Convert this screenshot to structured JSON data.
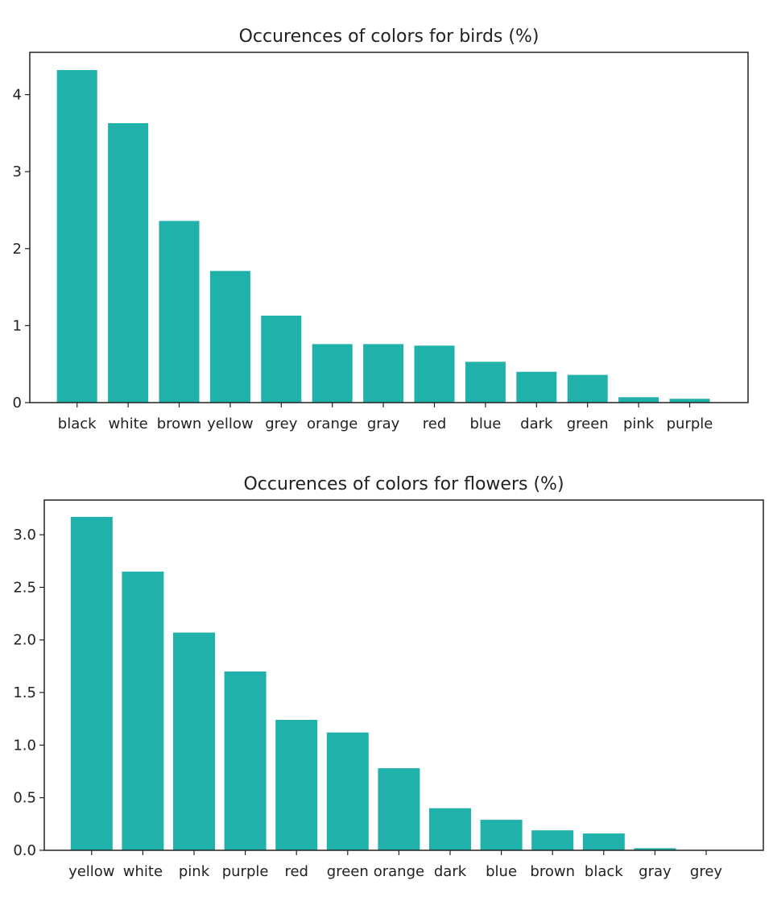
{
  "chart_data": [
    {
      "type": "bar",
      "title": "Occurences of colors for birds (%)",
      "xlabel": "",
      "ylabel": "",
      "categories": [
        "black",
        "white",
        "brown",
        "yellow",
        "grey",
        "orange",
        "gray",
        "red",
        "blue",
        "dark",
        "green",
        "pink",
        "purple"
      ],
      "values": [
        4.32,
        3.63,
        2.36,
        1.71,
        1.13,
        0.76,
        0.76,
        0.74,
        0.53,
        0.4,
        0.36,
        0.07,
        0.05
      ],
      "ylim": [
        0,
        4.55
      ],
      "yticks": [
        0,
        1,
        2,
        3,
        4
      ],
      "ytick_labels": [
        "0",
        "1",
        "2",
        "3",
        "4"
      ],
      "grid": false,
      "bar_color": "#20b2aa"
    },
    {
      "type": "bar",
      "title": "Occurences of colors for flowers (%)",
      "xlabel": "",
      "ylabel": "",
      "categories": [
        "yellow",
        "white",
        "pink",
        "purple",
        "red",
        "green",
        "orange",
        "dark",
        "blue",
        "brown",
        "black",
        "gray",
        "grey"
      ],
      "values": [
        3.17,
        2.65,
        2.07,
        1.7,
        1.24,
        1.12,
        0.78,
        0.4,
        0.29,
        0.19,
        0.16,
        0.02,
        0.0
      ],
      "ylim": [
        0,
        3.33
      ],
      "yticks": [
        0,
        0.5,
        1.0,
        1.5,
        2.0,
        2.5,
        3.0
      ],
      "ytick_labels": [
        "0.0",
        "0.5",
        "1.0",
        "1.5",
        "2.0",
        "2.5",
        "3.0"
      ],
      "grid": false,
      "bar_color": "#20b2aa"
    }
  ]
}
